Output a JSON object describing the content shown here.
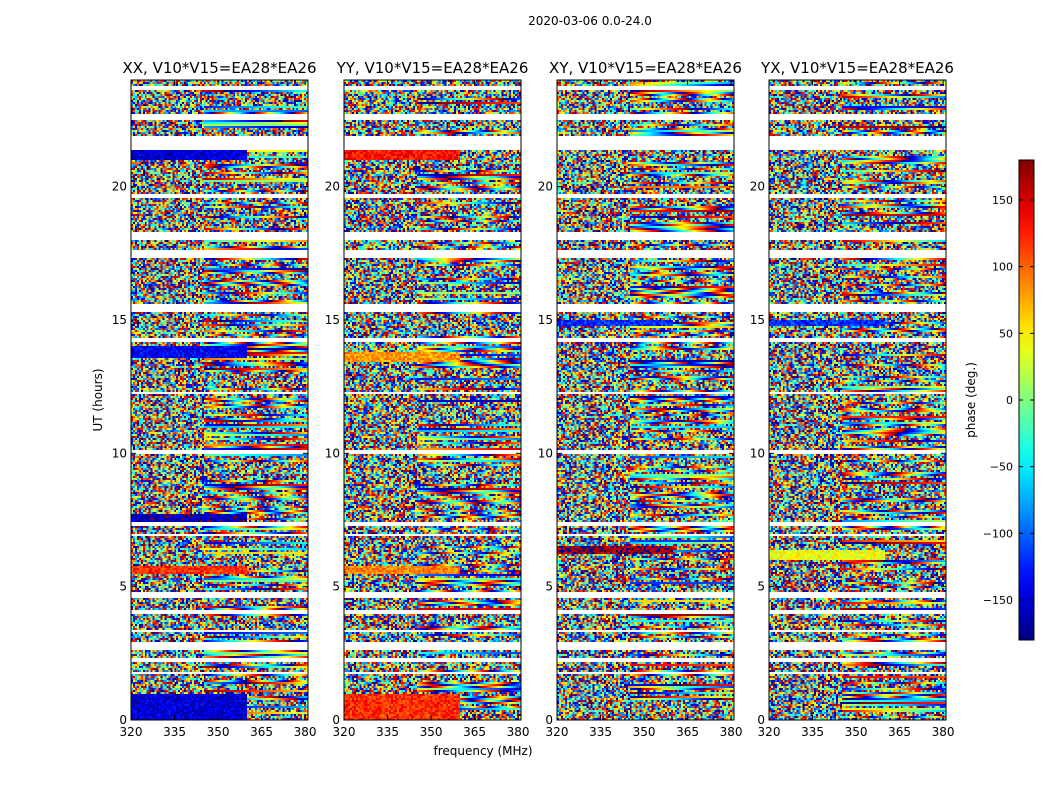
{
  "chart_data": {
    "type": "heatmap",
    "suptitle": "2020-03-06 0.0-24.0",
    "xlabel": "frequency (MHz)",
    "ylabel": "UT (hours)",
    "xlim": [
      320,
      381
    ],
    "ylim": [
      0,
      24
    ],
    "xticks": [
      320,
      335,
      350,
      365,
      380
    ],
    "yticks": [
      0,
      5,
      10,
      15,
      20
    ],
    "panels": [
      {
        "title": "XX, V10*V15=EA28*EA26",
        "dominant_phase_bands": [
          {
            "t0": 21.0,
            "t1": 21.4,
            "phase": -150
          },
          {
            "t0": 13.6,
            "t1": 14.0,
            "phase": -140
          },
          {
            "t0": 7.4,
            "t1": 7.7,
            "phase": -160
          },
          {
            "t0": 5.5,
            "t1": 5.8,
            "phase": 120
          },
          {
            "t0": 0.0,
            "t1": 1.0,
            "phase": -150
          }
        ]
      },
      {
        "title": "YY, V10*V15=EA28*EA26",
        "dominant_phase_bands": [
          {
            "t0": 21.0,
            "t1": 21.4,
            "phase": 130
          },
          {
            "t0": 13.4,
            "t1": 13.8,
            "phase": 80
          },
          {
            "t0": 5.5,
            "t1": 5.8,
            "phase": 90
          },
          {
            "t0": 0.0,
            "t1": 1.0,
            "phase": 120
          }
        ]
      },
      {
        "title": "XY, V10*V15=EA28*EA26",
        "dominant_phase_bands": [
          {
            "t0": 6.2,
            "t1": 6.5,
            "phase": 170
          },
          {
            "t0": 14.8,
            "t1": 15.0,
            "phase": -120
          }
        ]
      },
      {
        "title": "YX, V10*V15=EA28*EA26",
        "dominant_phase_bands": [
          {
            "t0": 6.0,
            "t1": 6.4,
            "phase": 40
          },
          {
            "t0": 14.8,
            "t1": 15.0,
            "phase": -120
          }
        ]
      }
    ],
    "flagged_gaps_hours": [
      [
        23.6,
        23.8
      ],
      [
        22.5,
        22.7
      ],
      [
        21.4,
        21.9
      ],
      [
        19.6,
        19.75
      ],
      [
        18.0,
        18.3
      ],
      [
        17.3,
        17.6
      ],
      [
        15.3,
        15.6
      ],
      [
        14.2,
        14.35
      ],
      [
        12.2,
        12.3
      ],
      [
        10.0,
        10.1
      ],
      [
        7.25,
        7.4
      ],
      [
        6.9,
        7.0
      ],
      [
        4.6,
        4.8
      ],
      [
        4.0,
        4.1
      ],
      [
        3.3,
        3.4
      ],
      [
        2.6,
        2.9
      ],
      [
        2.2,
        2.3
      ],
      [
        1.7,
        1.8
      ]
    ],
    "colorbar": {
      "label": "phase (deg.)",
      "range": [
        -180,
        180
      ],
      "ticks": [
        150,
        100,
        50,
        0,
        -50,
        -100,
        -150
      ],
      "tick_labels": [
        "150",
        "100",
        "50",
        "0",
        "−50",
        "−100",
        "−150"
      ],
      "colormap": "jet"
    }
  }
}
